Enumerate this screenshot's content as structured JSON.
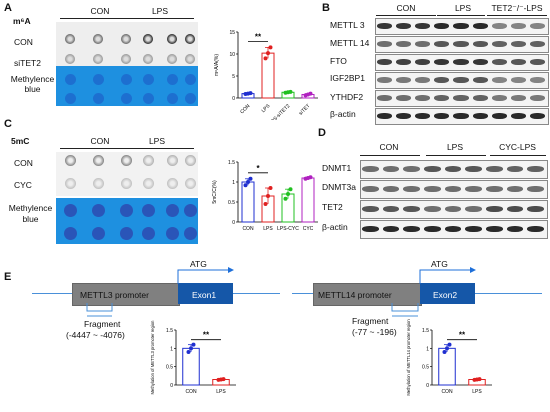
{
  "panels": {
    "A": {
      "letter": "A",
      "title": "m⁶A",
      "cols": [
        "CON",
        "LPS"
      ],
      "rows": [
        "CON",
        "siTET2",
        "Methylence blue"
      ]
    },
    "B": {
      "letter": "B",
      "cols": [
        "CON",
        "LPS",
        "TET2⁻/⁻-LPS"
      ],
      "rows": [
        "METTL 3",
        "METTL 14",
        "FTO",
        "IGF2BP1",
        "YTHDF2",
        "β-actin"
      ]
    },
    "C": {
      "letter": "C",
      "title": "5mC",
      "cols": [
        "CON",
        "LPS"
      ],
      "rows": [
        "CON",
        "CYC",
        "Methylence blue"
      ]
    },
    "D": {
      "letter": "D",
      "cols": [
        "CON",
        "LPS",
        "CYC-LPS"
      ],
      "rows": [
        "DNMT1",
        "DNMT3a",
        "TET2",
        "β-actin"
      ]
    },
    "E": {
      "letter": "E",
      "gene1": {
        "promoter": "METTL3  promoter",
        "exon": "Exon1",
        "atg": "ATG",
        "fragment": "Fragment",
        "range": "(-4447 ~ -4076)"
      },
      "gene2": {
        "promoter": "METTL14  promoter",
        "exon": "Exon2",
        "atg": "ATG",
        "fragment": "Fragment",
        "range": "(-77 ~ -196)"
      }
    }
  },
  "colors": {
    "blue": "#1f2fd0",
    "red": "#e02020",
    "green": "#20c020",
    "magenta": "#b020c0",
    "exon": "#1557a8",
    "promoter": "#808080"
  },
  "chart_data": [
    {
      "id": "A",
      "type": "bar",
      "categories": [
        "CON",
        "LPS",
        "LPS-siTET2",
        "siTET"
      ],
      "values": [
        1.0,
        10.2,
        1.3,
        0.8
      ],
      "ylabel": "m⁶A/A(%)",
      "ylim": [
        0,
        15
      ],
      "yticks": [
        0,
        5,
        10,
        15
      ],
      "sig": "**",
      "sig_between": [
        0,
        1
      ],
      "colors": [
        "#1f2fd0",
        "#e02020",
        "#20c020",
        "#b020c0"
      ],
      "points": [
        [
          0.9,
          1.0,
          1.1
        ],
        [
          9.0,
          10.2,
          11.5
        ],
        [
          1.2,
          1.3,
          1.4
        ],
        [
          0.6,
          0.8,
          1.0
        ]
      ]
    },
    {
      "id": "C",
      "type": "bar",
      "categories": [
        "CON",
        "LPS",
        "LPS-CYC",
        "CYC"
      ],
      "values": [
        1.0,
        0.65,
        0.7,
        1.1
      ],
      "ylabel": "5mC/C(%)",
      "ylim": [
        0,
        1.5
      ],
      "yticks": [
        0.0,
        0.5,
        1.0,
        1.5
      ],
      "sig": "*",
      "sig_between": [
        0,
        1
      ],
      "colors": [
        "#1f2fd0",
        "#e02020",
        "#20c020",
        "#b020c0"
      ],
      "points": [
        [
          0.92,
          1.0,
          1.08
        ],
        [
          0.45,
          0.65,
          0.85
        ],
        [
          0.58,
          0.7,
          0.82
        ],
        [
          1.08,
          1.1,
          1.12
        ]
      ]
    },
    {
      "id": "E1",
      "type": "bar",
      "categories": [
        "CON",
        "LPS"
      ],
      "values": [
        1.0,
        0.15
      ],
      "ylabel": "Methylation of METTL3 promoter region",
      "ylim": [
        0,
        1.5
      ],
      "yticks": [
        0.0,
        0.5,
        1.0,
        1.5
      ],
      "sig": "**",
      "sig_between": [
        0,
        1
      ],
      "colors": [
        "#1f2fd0",
        "#e02020"
      ],
      "points": [
        [
          0.9,
          1.0,
          1.1
        ],
        [
          0.14,
          0.15,
          0.16
        ]
      ]
    },
    {
      "id": "E2",
      "type": "bar",
      "categories": [
        "CON",
        "LPS"
      ],
      "values": [
        1.0,
        0.15
      ],
      "ylabel": "Methylation of METTL14 promoter region",
      "ylim": [
        0,
        1.5
      ],
      "yticks": [
        0.0,
        0.5,
        1.0,
        1.5
      ],
      "sig": "**",
      "sig_between": [
        0,
        1
      ],
      "colors": [
        "#1f2fd0",
        "#e02020"
      ],
      "points": [
        [
          0.9,
          1.0,
          1.1
        ],
        [
          0.14,
          0.15,
          0.16
        ]
      ]
    }
  ]
}
